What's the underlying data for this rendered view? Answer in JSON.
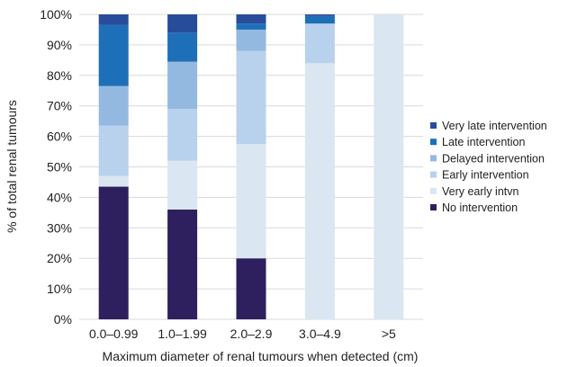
{
  "chart_data": {
    "type": "bar",
    "stacked": true,
    "categories": [
      "0.0–0.99",
      "1.0–1.99",
      "2.0–2.9",
      "3.0–4.9",
      ">5"
    ],
    "series": [
      {
        "name": "No intervention",
        "color": "#2e1f5e",
        "values": [
          43.5,
          36,
          20,
          0,
          0
        ]
      },
      {
        "name": "Very early intvn",
        "color": "#dae6f1",
        "values": [
          3.5,
          16,
          37.5,
          84,
          100
        ]
      },
      {
        "name": "Early intervention",
        "color": "#b8d1ec",
        "values": [
          16.5,
          17,
          30.5,
          13,
          0
        ]
      },
      {
        "name": "Delayed intervention",
        "color": "#94b9e1",
        "values": [
          13,
          15.5,
          7,
          0,
          0
        ]
      },
      {
        "name": "Late intervention",
        "color": "#1d6fb8",
        "values": [
          20,
          9.5,
          2,
          2.5,
          0
        ]
      },
      {
        "name": "Very late intervention",
        "color": "#274c9a",
        "values": [
          3.5,
          6,
          3,
          0.5,
          0
        ]
      }
    ],
    "xlabel": "Maximum diameter of renal tumours when detected (cm)",
    "ylabel": "% of total renal tumours",
    "ylim": [
      0,
      100
    ],
    "yticks": [
      "0%",
      "10%",
      "20%",
      "30%",
      "40%",
      "50%",
      "60%",
      "70%",
      "80%",
      "90%",
      "100%"
    ],
    "grid": true,
    "legend_position": "right",
    "legend_order": [
      "Very late intervention",
      "Late intervention",
      "Delayed intervention",
      "Early intervention",
      "Very early intvn",
      "No intervention"
    ]
  }
}
